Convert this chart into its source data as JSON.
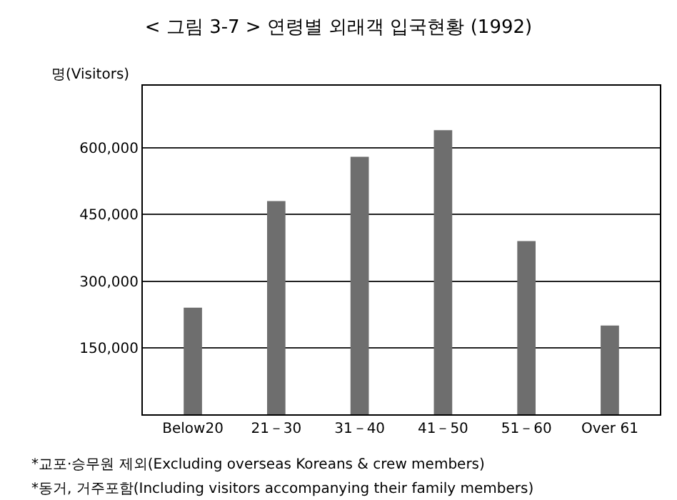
{
  "chart_data": {
    "type": "bar",
    "title": "< 그림 3-7 > 연령별 외래객 입국현황 (1992)",
    "ylabel": "명(Visitors)",
    "categories": [
      "Below20",
      "21－30",
      "31－40",
      "41－50",
      "51－60",
      "Over 61"
    ],
    "values": [
      240000,
      480000,
      580000,
      640000,
      390000,
      200000
    ],
    "color": "#6e6e6e",
    "ylim": [
      0,
      740000
    ],
    "yticks": [
      {
        "value": 150000,
        "label": "150,000"
      },
      {
        "value": 300000,
        "label": "300,000"
      },
      {
        "value": 450000,
        "label": "450,000"
      },
      {
        "value": 600000,
        "label": "600,000"
      }
    ],
    "grid": "y",
    "annotations": [
      "*교포·승무원 제외(Excluding overseas Koreans & crew members)",
      "*동거, 거주포함(Including visitors accompanying their family members)"
    ]
  }
}
